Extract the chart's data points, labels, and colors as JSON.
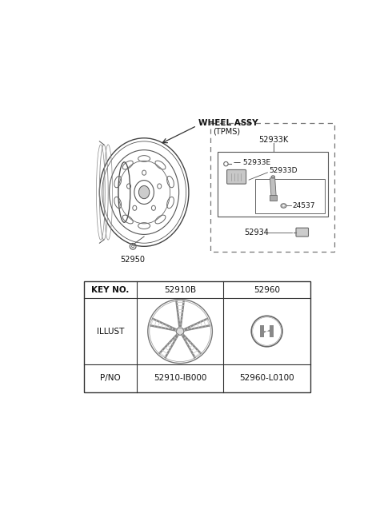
{
  "bg_color": "#ffffff",
  "wheel_label": "WHEEL ASSY",
  "part_52950": "52950",
  "tpms_label": "(TPMS)",
  "parts_labels": [
    "52933K",
    "52933E",
    "52933D",
    "24537",
    "52934"
  ],
  "table_headers": [
    "KEY NO.",
    "52910B",
    "52960"
  ],
  "table_illust": "ILLUST",
  "table_pno": "P/NO",
  "table_pno_vals": [
    "52910-IB000",
    "52960-L0100"
  ]
}
